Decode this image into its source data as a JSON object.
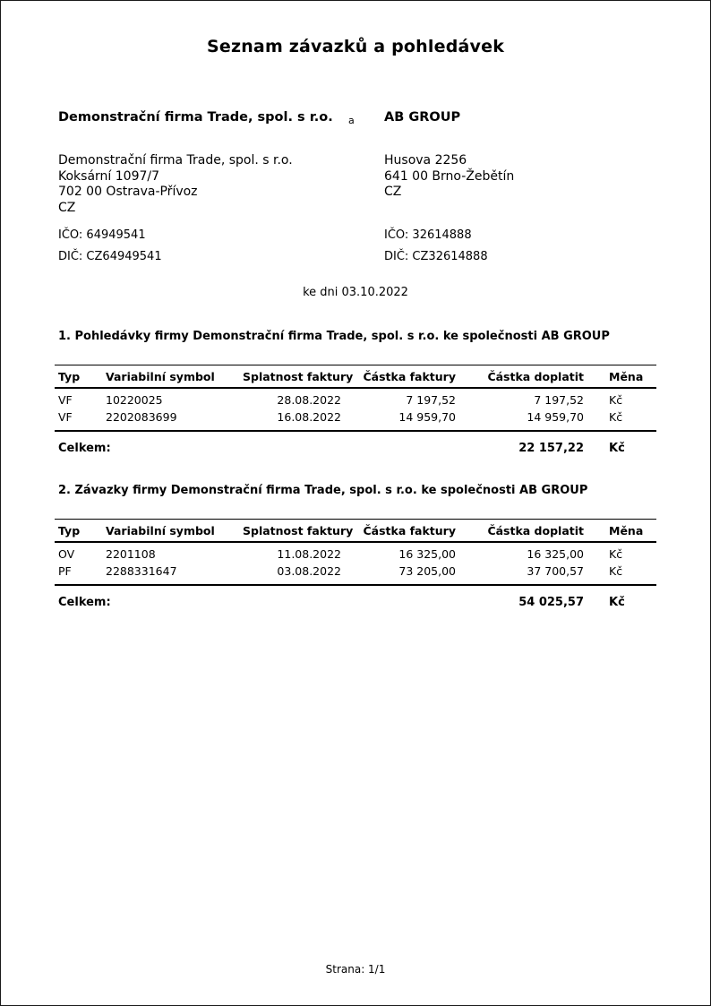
{
  "doc": {
    "title": "Seznam závazků a pohledávek",
    "conjunction": "a",
    "as_of": "ke dni 03.10.2022",
    "footer": "Strana: 1/1"
  },
  "left_company": {
    "name": "Demonstrační firma Trade, spol. s r.o.",
    "address_lines": [
      "Demonstrační firma Trade, spol. s r.o.",
      "Koksární 1097/7",
      "702 00 Ostrava-Přívoz",
      "CZ"
    ],
    "ico": "IČO: 64949541",
    "dic": "DIČ: CZ64949541"
  },
  "right_company": {
    "name": "AB GROUP",
    "address_lines": [
      "Husova 2256",
      "641 00 Brno-Žebětín",
      "CZ"
    ],
    "ico": "IČO: 32614888",
    "dic": "DIČ: CZ32614888"
  },
  "sections": [
    {
      "heading": "1. Pohledávky firmy Demonstrační firma Trade, spol. s r.o. ke společnosti AB GROUP",
      "columns": [
        "Typ",
        "Variabilní symbol",
        "Splatnost faktury",
        "Částka faktury",
        "Částka doplatit",
        "Měna"
      ],
      "rows": [
        [
          "VF",
          "10220025",
          "28.08.2022",
          "7 197,52",
          "7 197,52",
          "Kč"
        ],
        [
          "VF",
          "2202083699",
          "16.08.2022",
          "14 959,70",
          "14 959,70",
          "Kč"
        ]
      ],
      "total_label": "Celkem:",
      "total_value": "22 157,22",
      "total_currency": "Kč"
    },
    {
      "heading": "2. Závazky firmy Demonstrační firma Trade, spol. s r.o. ke společnosti AB GROUP",
      "columns": [
        "Typ",
        "Variabilní symbol",
        "Splatnost faktury",
        "Částka faktury",
        "Částka doplatit",
        "Měna"
      ],
      "rows": [
        [
          "OV",
          "2201108",
          "11.08.2022",
          "16 325,00",
          "16 325,00",
          "Kč"
        ],
        [
          "PF",
          "2288331647",
          "03.08.2022",
          "73 205,00",
          "37 700,57",
          "Kč"
        ]
      ],
      "total_label": "Celkem:",
      "total_value": "54 025,57",
      "total_currency": "Kč"
    }
  ]
}
